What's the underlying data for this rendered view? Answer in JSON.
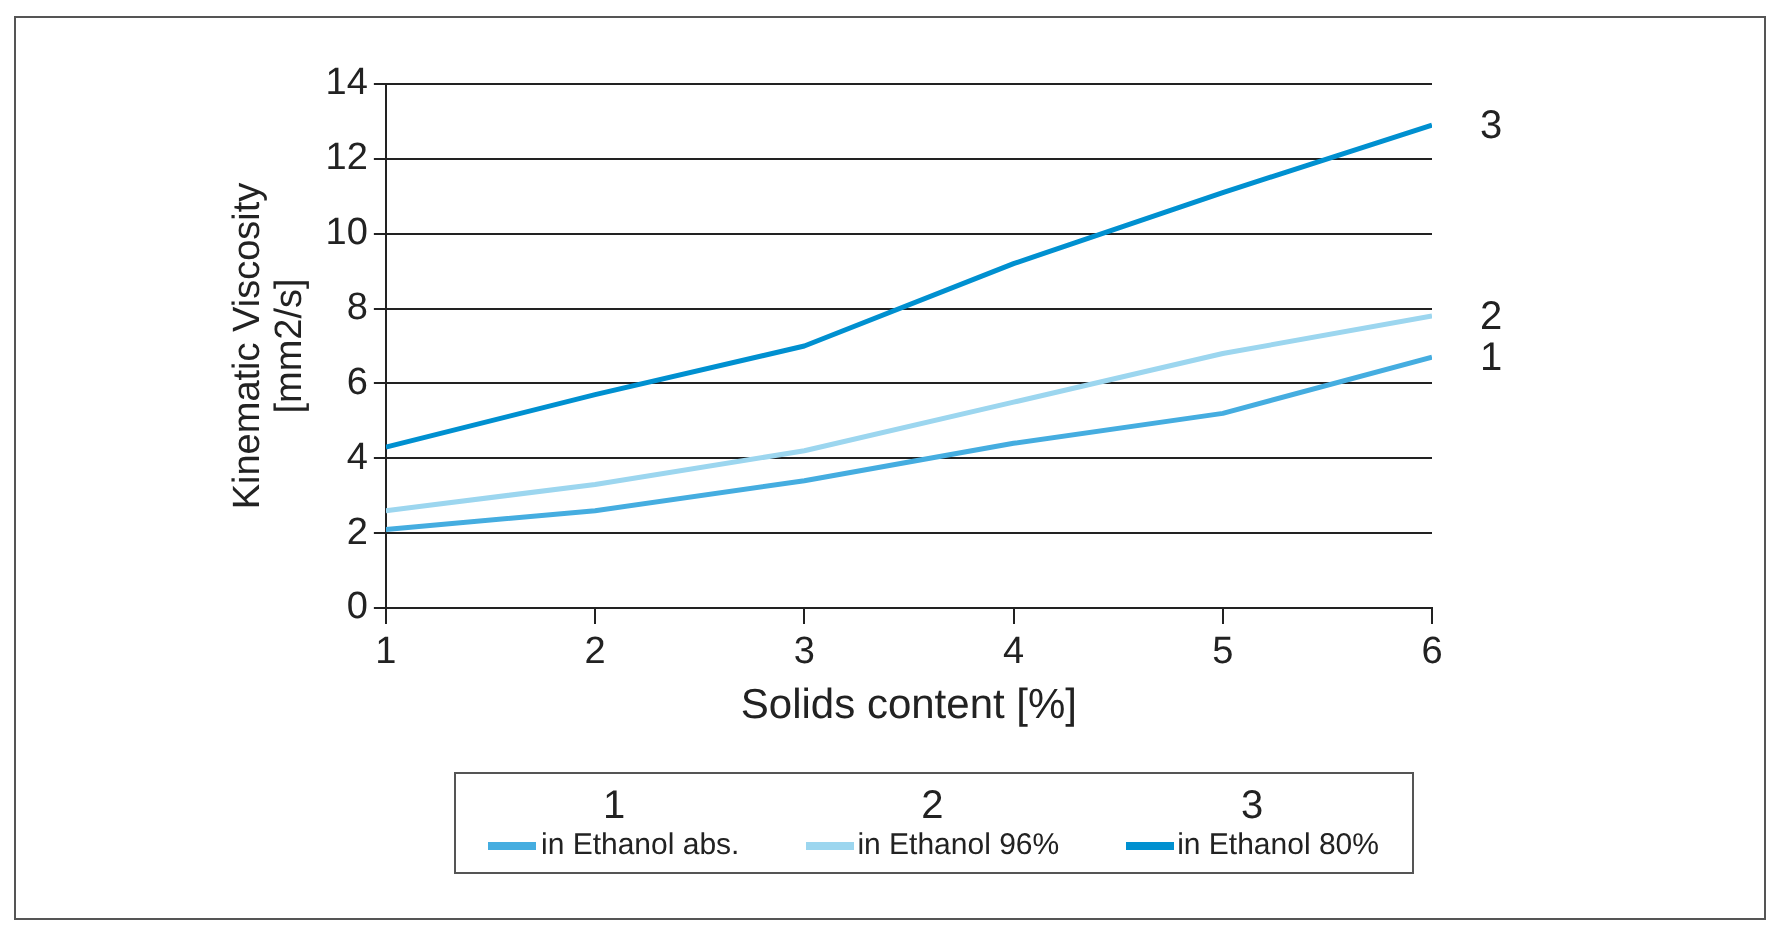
{
  "chart_data": {
    "type": "line",
    "xlabel": "Solids content [%]",
    "ylabel": "Kinematic Viscosity\n[mm2/s]",
    "x": [
      1,
      2,
      3,
      4,
      5,
      6
    ],
    "xlim": [
      1,
      6
    ],
    "xticks": [
      1,
      2,
      3,
      4,
      5,
      6
    ],
    "ylim": [
      0,
      14
    ],
    "yticks": [
      0,
      2,
      4,
      6,
      8,
      10,
      12,
      14
    ],
    "grid": "y",
    "legend": "bottom",
    "marker": "none",
    "line_style": "solid",
    "series": [
      {
        "name": "in Ethanol abs.",
        "color": "#45ade0",
        "values": [
          2.1,
          2.6,
          3.4,
          4.4,
          5.2,
          6.7
        ]
      },
      {
        "name": "in Ethanol 96%",
        "color": "#9cd6ef",
        "values": [
          2.6,
          3.3,
          4.2,
          5.5,
          6.8,
          7.8
        ]
      },
      {
        "name": "in Ethanol 80%",
        "color": "#0090d0",
        "values": [
          4.3,
          5.7,
          7.0,
          9.2,
          11.1,
          12.9
        ]
      }
    ],
    "annotations": [
      "1",
      "2",
      "3"
    ]
  }
}
